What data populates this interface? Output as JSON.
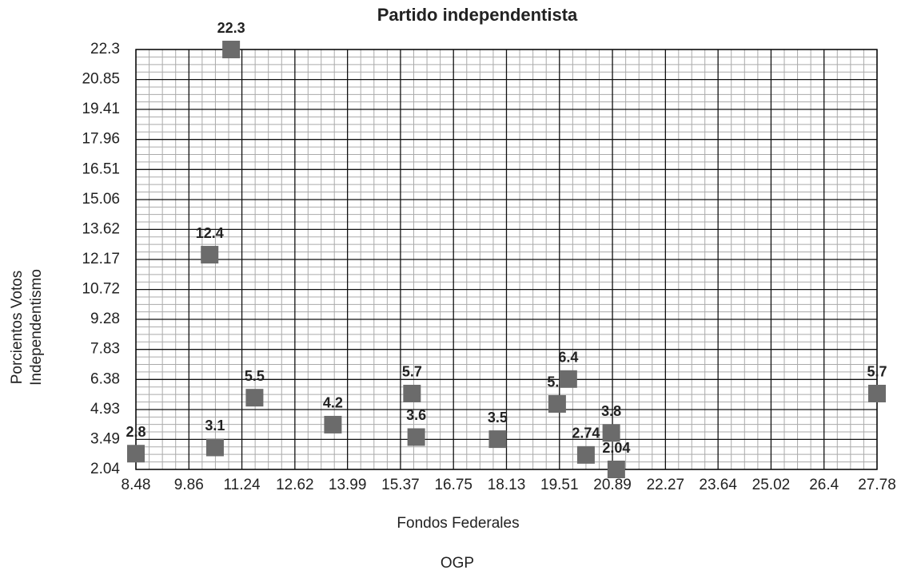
{
  "chart_data": {
    "type": "scatter",
    "title": "Partido independentista",
    "x_label": "Fondos Federales",
    "y_label": [
      "Porcientos Votos",
      "Independentismo"
    ],
    "caption": "OGP",
    "color": "#6b6b6b",
    "grid": true,
    "xlim": [
      8.48,
      27.78
    ],
    "ylim": [
      2.04,
      22.3
    ],
    "xticks": [
      8.48,
      9.86,
      11.24,
      12.62,
      13.99,
      15.37,
      16.75,
      18.13,
      19.51,
      20.89,
      22.27,
      23.64,
      25.02,
      26.4,
      27.78
    ],
    "yticks": [
      2.04,
      3.49,
      4.93,
      6.38,
      7.83,
      9.28,
      10.72,
      12.17,
      13.62,
      15.06,
      16.51,
      17.96,
      19.41,
      20.85,
      22.3
    ],
    "x": [
      8.48,
      10.54,
      10.4,
      10.96,
      11.57,
      13.61,
      15.67,
      15.78,
      17.9,
      19.45,
      19.74,
      20.2,
      20.86,
      20.99,
      27.78
    ],
    "values": [
      2.8,
      3.1,
      12.4,
      22.3,
      5.5,
      4.2,
      5.7,
      3.6,
      3.5,
      5.2,
      6.4,
      2.74,
      3.8,
      2.04,
      5.7
    ]
  }
}
